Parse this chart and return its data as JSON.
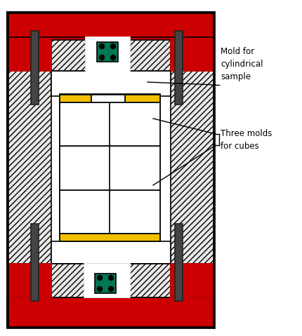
{
  "bg_color": "#ffffff",
  "red": "#cc0000",
  "yellow": "#f0c000",
  "green": "#007755",
  "black": "#000000",
  "dark_gray": "#444444",
  "hatch_fc": "#e8e8e8",
  "white": "#ffffff",
  "label1": "Mold for\ncylindrical\nsample",
  "label2": "Three molds\nfor cubes",
  "lw": 1.2
}
